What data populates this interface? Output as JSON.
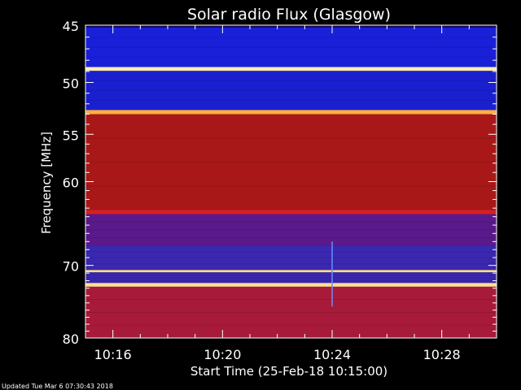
{
  "chart_data": {
    "type": "heatmap",
    "title": "Solar radio Flux (Glasgow)",
    "xlabel": "Start Time (25-Feb-18 10:15:00)",
    "ylabel": "Frequency [MHz]",
    "x_range": [
      "10:15:00",
      "10:30:00"
    ],
    "ylim": [
      45,
      80
    ],
    "y_scale": "log (inverted: 45 MHz at top, 80 MHz at bottom)",
    "x_ticks": [
      "10:16",
      "10:20",
      "10:24",
      "10:28"
    ],
    "y_ticks": [
      45,
      50,
      55,
      60,
      70,
      80
    ],
    "colormap": [
      "#1a0a8c",
      "#2a1fb4",
      "#3a3ad8",
      "#b01a1a",
      "#d82a1a",
      "#ff5a1a",
      "#ffc040",
      "#ffffc0"
    ],
    "bands": [
      {
        "from_mhz": 45.2,
        "to_mhz": 48.6,
        "level": "low",
        "color": "#1a1fd8"
      },
      {
        "from_mhz": 48.6,
        "to_mhz": 48.95,
        "level": "very high",
        "color": "#fff0b0"
      },
      {
        "from_mhz": 48.95,
        "to_mhz": 52.6,
        "level": "low",
        "color": "#1a1fd0"
      },
      {
        "from_mhz": 52.6,
        "to_mhz": 53.0,
        "level": "high",
        "color": "#ffb040"
      },
      {
        "from_mhz": 53.0,
        "to_mhz": 63.2,
        "level": "medium",
        "color": "#a81818"
      },
      {
        "from_mhz": 63.2,
        "to_mhz": 63.7,
        "level": "medium-high",
        "color": "#d82020"
      },
      {
        "from_mhz": 63.7,
        "to_mhz": 67.5,
        "level": "low-medium",
        "color": "#5a1a8c"
      },
      {
        "from_mhz": 67.5,
        "to_mhz": 70.6,
        "level": "low",
        "color": "#3a28b0"
      },
      {
        "from_mhz": 70.6,
        "to_mhz": 70.9,
        "level": "very high",
        "color": "#ffe080"
      },
      {
        "from_mhz": 70.9,
        "to_mhz": 72.3,
        "level": "low",
        "color": "#3a28b0"
      },
      {
        "from_mhz": 72.3,
        "to_mhz": 72.8,
        "level": "very high",
        "color": "#ffe090"
      },
      {
        "from_mhz": 72.8,
        "to_mhz": 80.0,
        "level": "medium",
        "color": "#a81a3a"
      }
    ],
    "events": [
      {
        "time": "10:24:00",
        "from_mhz": 67.0,
        "to_mhz": 75.5,
        "description": "vertical spike"
      }
    ]
  },
  "footer": {
    "updated": "Updated Tue Mar  6 07:30:43 2018"
  }
}
